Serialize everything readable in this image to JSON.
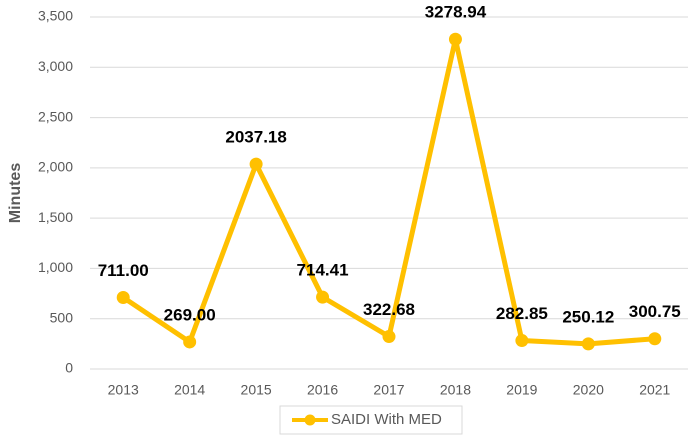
{
  "chart_data": {
    "type": "line",
    "y_label": "Minutes",
    "categories": [
      "2013",
      "2014",
      "2015",
      "2016",
      "2017",
      "2018",
      "2019",
      "2020",
      "2021"
    ],
    "series": [
      {
        "name": "SAIDI With MED",
        "color": "#FFC000",
        "values": [
          711,
          269,
          2037.18,
          714.41,
          322.68,
          3278.94,
          282.85,
          250.12,
          300.75
        ],
        "value_labels": [
          "711.00",
          "269.00",
          "2037.18",
          "714.41",
          "322.68",
          "3278.94",
          "282.85",
          "250.12",
          "300.75"
        ]
      }
    ],
    "ylim": [
      0,
      3500
    ],
    "yticks": [
      0,
      500,
      {
        "value": 1000,
        "label": "1,000"
      },
      {
        "value": 1500,
        "label": "1,500"
      },
      {
        "value": 2000,
        "label": "2,000"
      },
      {
        "value": 2500,
        "label": "2,500"
      },
      {
        "value": 3000,
        "label": "3,000"
      },
      {
        "value": 3500,
        "label": "3,500"
      }
    ],
    "grid": true,
    "legend": "bottom"
  }
}
